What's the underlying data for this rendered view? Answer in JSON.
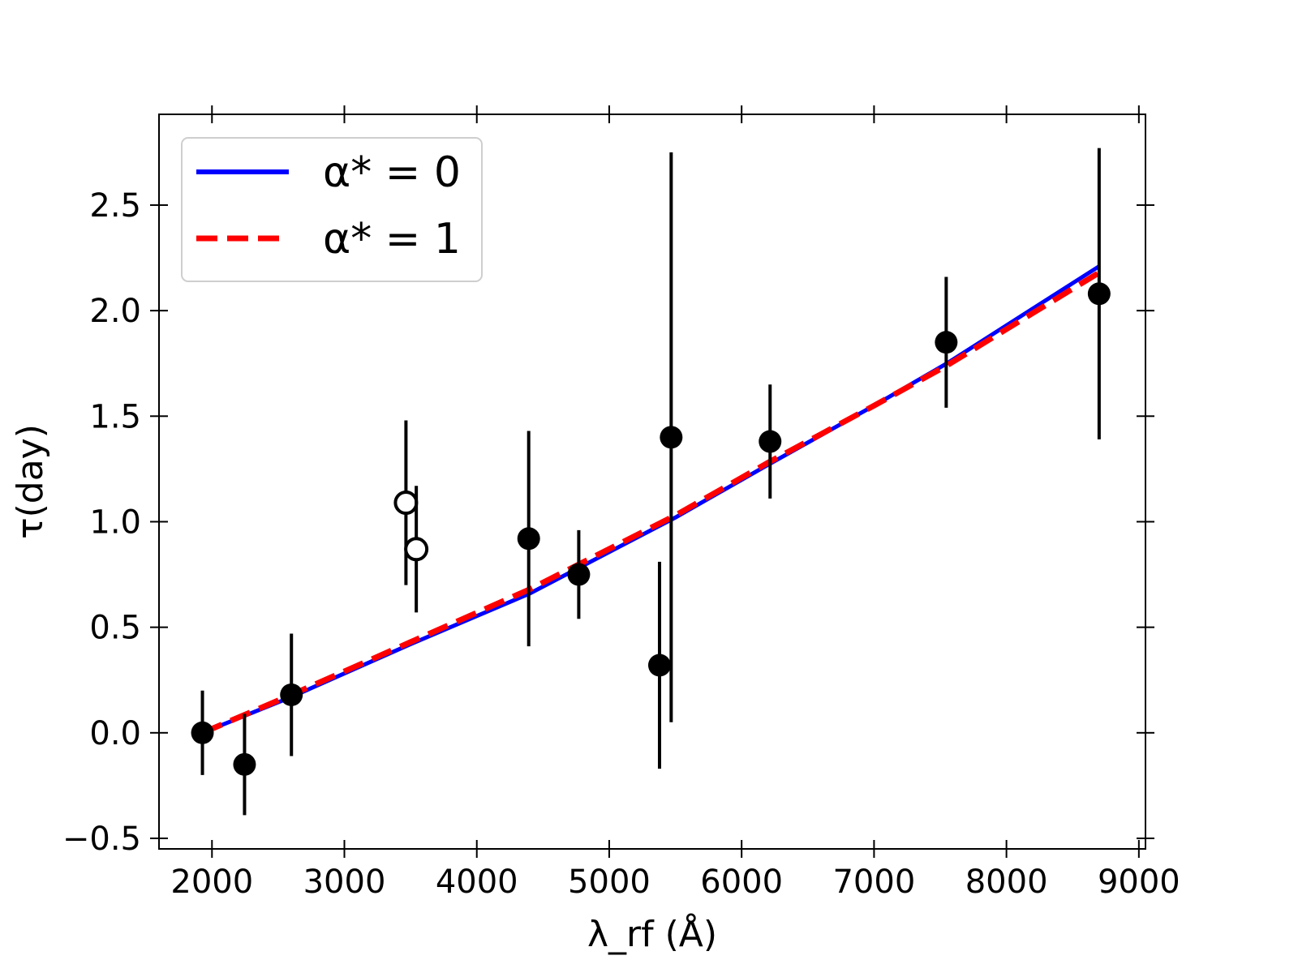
{
  "chart_data": {
    "type": "scatter",
    "title": "",
    "xlabel": "λ_rf (Å)",
    "ylabel": "τ(day)",
    "xlim": [
      1600,
      9050
    ],
    "ylim": [
      -0.55,
      2.93
    ],
    "xticks": [
      2000,
      3000,
      4000,
      5000,
      6000,
      7000,
      8000,
      9000
    ],
    "xtick_labels": [
      "2000",
      "3000",
      "4000",
      "5000",
      "6000",
      "7000",
      "8000",
      "9000"
    ],
    "yticks": [
      -0.5,
      0.0,
      0.5,
      1.0,
      1.5,
      2.0,
      2.5
    ],
    "ytick_labels": [
      "−0.5",
      "0.0",
      "0.5",
      "1.0",
      "1.5",
      "2.0",
      "2.5"
    ],
    "grid": false,
    "legend_position": "top-left",
    "points_filled": [
      {
        "x": 1928,
        "y": 0.0,
        "err_low": 0.2,
        "err_high": 0.2
      },
      {
        "x": 2246,
        "y": -0.15,
        "err_low": 0.24,
        "err_high": 0.24
      },
      {
        "x": 2600,
        "y": 0.18,
        "err_low": 0.29,
        "err_high": 0.29
      },
      {
        "x": 4392,
        "y": 0.92,
        "err_low": 0.51,
        "err_high": 0.51
      },
      {
        "x": 4770,
        "y": 0.75,
        "err_low": 0.21,
        "err_high": 0.21
      },
      {
        "x": 5380,
        "y": 0.32,
        "err_low": 0.49,
        "err_high": 0.49
      },
      {
        "x": 5468,
        "y": 1.4,
        "err_low": 1.35,
        "err_high": 1.35
      },
      {
        "x": 6215,
        "y": 1.38,
        "err_low": 0.27,
        "err_high": 0.27
      },
      {
        "x": 7545,
        "y": 1.85,
        "err_low": 0.31,
        "err_high": 0.31
      },
      {
        "x": 8700,
        "y": 2.08,
        "err_low": 0.69,
        "err_high": 0.69
      }
    ],
    "points_open": [
      {
        "x": 3465,
        "y": 1.09,
        "err_low": 0.39,
        "err_high": 0.39
      },
      {
        "x": 3543,
        "y": 0.87,
        "err_low": 0.3,
        "err_high": 0.3
      }
    ],
    "series": [
      {
        "name": "α* = 0",
        "color": "#0000ff",
        "style": "solid",
        "x": [
          1928,
          2600,
          3500,
          4400,
          5500,
          6200,
          7000,
          7550,
          8700
        ],
        "y": [
          0.0,
          0.17,
          0.42,
          0.66,
          1.02,
          1.27,
          1.55,
          1.75,
          2.21
        ]
      },
      {
        "name": "α* = 1",
        "color": "#ff0000",
        "style": "dashed",
        "x": [
          1928,
          2600,
          3500,
          4400,
          5500,
          6200,
          7000,
          7550,
          8700
        ],
        "y": [
          0.0,
          0.18,
          0.43,
          0.68,
          1.03,
          1.28,
          1.55,
          1.74,
          2.18
        ]
      }
    ]
  }
}
